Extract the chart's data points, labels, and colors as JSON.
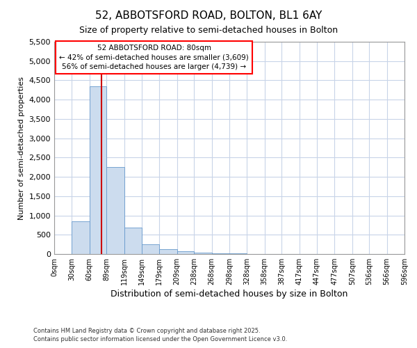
{
  "title_line1": "52, ABBOTSFORD ROAD, BOLTON, BL1 6AY",
  "title_line2": "Size of property relative to semi-detached houses in Bolton",
  "xlabel": "Distribution of semi-detached houses by size in Bolton",
  "ylabel": "Number of semi-detached properties",
  "bin_edges": [
    0,
    30,
    60,
    89,
    119,
    149,
    179,
    209,
    238,
    268,
    298,
    328,
    358,
    387,
    417,
    447,
    477,
    507,
    536,
    566,
    596
  ],
  "bin_labels": [
    "0sqm",
    "30sqm",
    "60sqm",
    "89sqm",
    "119sqm",
    "149sqm",
    "179sqm",
    "209sqm",
    "238sqm",
    "268sqm",
    "298sqm",
    "328sqm",
    "358sqm",
    "387sqm",
    "417sqm",
    "447sqm",
    "477sqm",
    "507sqm",
    "536sqm",
    "566sqm",
    "596sqm"
  ],
  "bar_heights": [
    5,
    850,
    4350,
    2250,
    680,
    250,
    120,
    65,
    35,
    20,
    10,
    5,
    5,
    5,
    3,
    2,
    1,
    1,
    1,
    1
  ],
  "bar_color": "#ccdcee",
  "bar_edgecolor": "#6699cc",
  "grid_color": "#c8d4e8",
  "background_color": "#ffffff",
  "plot_bg_color": "#ffffff",
  "vline_x": 80,
  "vline_color": "#cc0000",
  "annotation_line1": "52 ABBOTSFORD ROAD: 80sqm",
  "annotation_line2": "← 42% of semi-detached houses are smaller (3,609)",
  "annotation_line3": "56% of semi-detached houses are larger (4,739) →",
  "ylim": [
    0,
    5500
  ],
  "yticks": [
    0,
    500,
    1000,
    1500,
    2000,
    2500,
    3000,
    3500,
    4000,
    4500,
    5000,
    5500
  ],
  "footnote_line1": "Contains HM Land Registry data © Crown copyright and database right 2025.",
  "footnote_line2": "Contains public sector information licensed under the Open Government Licence v3.0."
}
